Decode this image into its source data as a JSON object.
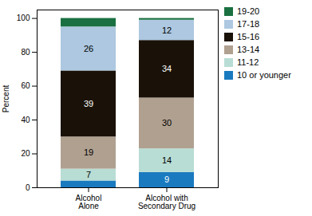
{
  "chart_data": {
    "type": "bar",
    "stacked": true,
    "data_labels": true,
    "ylabel": "Percent",
    "categories": [
      "Alcohol\nAlone",
      "Alcohol with\nSecondary Drug"
    ],
    "series": [
      {
        "name": "10 or younger",
        "color": "#1a7abf",
        "values": [
          4,
          9
        ],
        "value_labels": [
          null,
          "9"
        ]
      },
      {
        "name": "11-12",
        "color": "#b8ddd4",
        "values": [
          7,
          14
        ],
        "value_labels": [
          "7",
          "14"
        ]
      },
      {
        "name": "13-14",
        "color": "#b0a090",
        "values": [
          19,
          30
        ],
        "value_labels": [
          "19",
          "30"
        ]
      },
      {
        "name": "15-16",
        "color": "#1a1208",
        "values": [
          39,
          34
        ],
        "value_labels": [
          "39",
          "34"
        ]
      },
      {
        "name": "17-18",
        "color": "#adc8e0",
        "values": [
          26,
          12
        ],
        "value_labels": [
          "26",
          "12"
        ]
      },
      {
        "name": "19-20",
        "color": "#1a7040",
        "values": [
          5,
          1
        ],
        "value_labels": [
          null,
          null
        ]
      }
    ],
    "ylim": [
      0,
      105
    ],
    "yticks": [
      0,
      20,
      40,
      60,
      80,
      100
    ],
    "legend": "upper right"
  }
}
